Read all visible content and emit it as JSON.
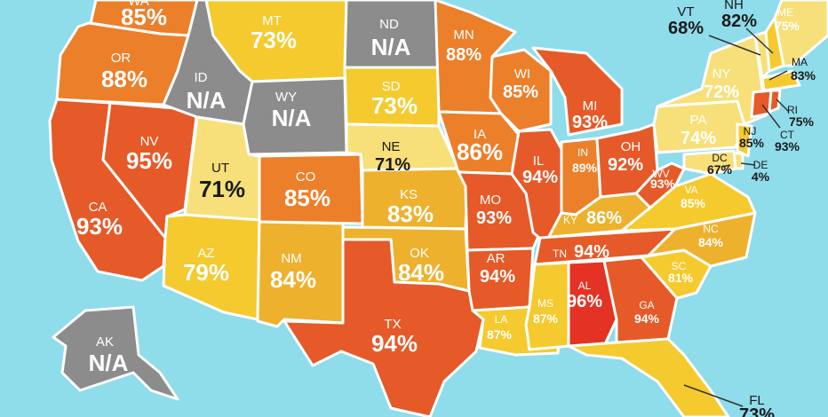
{
  "colors": {
    "ocean": "#8fdcea",
    "na": "#8c8c8c",
    "light_yellow": "#f7e07a",
    "yellow": "#f4ca2e",
    "amber": "#eeb12d",
    "light_orange": "#f0962d",
    "orange": "#ec7f2a",
    "red_orange": "#e55a28",
    "red": "#e43324"
  },
  "states": [
    {
      "abbr": "WA",
      "value": "85%"
    },
    {
      "abbr": "OR",
      "value": "88%"
    },
    {
      "abbr": "CA",
      "value": "93%"
    },
    {
      "abbr": "NV",
      "value": "95%"
    },
    {
      "abbr": "ID",
      "value": "N/A"
    },
    {
      "abbr": "MT",
      "value": "73%"
    },
    {
      "abbr": "WY",
      "value": "N/A"
    },
    {
      "abbr": "UT",
      "value": "71%"
    },
    {
      "abbr": "AZ",
      "value": "79%"
    },
    {
      "abbr": "CO",
      "value": "85%"
    },
    {
      "abbr": "NM",
      "value": "84%"
    },
    {
      "abbr": "ND",
      "value": "N/A"
    },
    {
      "abbr": "SD",
      "value": "73%"
    },
    {
      "abbr": "NE",
      "value": "71%"
    },
    {
      "abbr": "KS",
      "value": "83%"
    },
    {
      "abbr": "OK",
      "value": "84%"
    },
    {
      "abbr": "TX",
      "value": "94%"
    },
    {
      "abbr": "MN",
      "value": "88%"
    },
    {
      "abbr": "IA",
      "value": "86%"
    },
    {
      "abbr": "MO",
      "value": "93%"
    },
    {
      "abbr": "AR",
      "value": "94%"
    },
    {
      "abbr": "LA",
      "value": "87%"
    },
    {
      "abbr": "WI",
      "value": "85%"
    },
    {
      "abbr": "IL",
      "value": "94%"
    },
    {
      "abbr": "MI",
      "value": "93%"
    },
    {
      "abbr": "IN",
      "value": "89%"
    },
    {
      "abbr": "OH",
      "value": "92%"
    },
    {
      "abbr": "KY",
      "value": "86%"
    },
    {
      "abbr": "TN",
      "value": "94%"
    },
    {
      "abbr": "MS",
      "value": "87%"
    },
    {
      "abbr": "AL",
      "value": "96%"
    },
    {
      "abbr": "GA",
      "value": "94%"
    },
    {
      "abbr": "FL",
      "value": "73%"
    },
    {
      "abbr": "SC",
      "value": "81%"
    },
    {
      "abbr": "NC",
      "value": "84%"
    },
    {
      "abbr": "VA",
      "value": "85%"
    },
    {
      "abbr": "WV",
      "value": "93%"
    },
    {
      "abbr": "PA",
      "value": "74%"
    },
    {
      "abbr": "NY",
      "value": "72%"
    },
    {
      "abbr": "VT",
      "value": "68%"
    },
    {
      "abbr": "NH",
      "value": "82%"
    },
    {
      "abbr": "ME",
      "value": "75%"
    },
    {
      "abbr": "MA",
      "value": "83%"
    },
    {
      "abbr": "RI",
      "value": "75%"
    },
    {
      "abbr": "CT",
      "value": "93%"
    },
    {
      "abbr": "NJ",
      "value": "85%"
    },
    {
      "abbr": "DE",
      "value": "4%"
    },
    {
      "abbr": "DC",
      "value": "67%"
    },
    {
      "abbr": "AK",
      "value": "N/A"
    }
  ]
}
